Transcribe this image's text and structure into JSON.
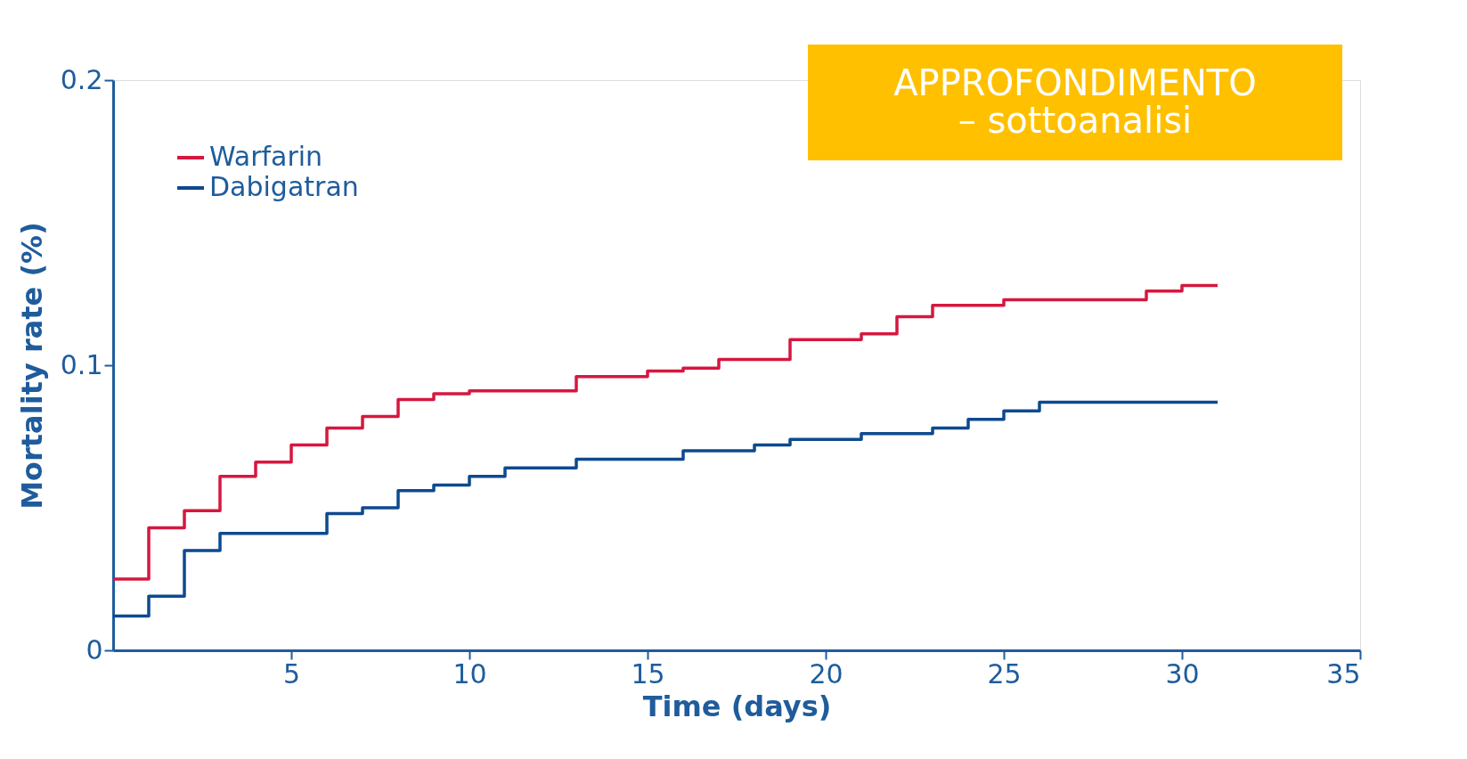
{
  "chart_data": {
    "type": "step",
    "xlabel": "Time (days)",
    "ylabel": "Mortality rate (%)",
    "xlim": [
      0,
      35
    ],
    "xticks": [
      5,
      10,
      15,
      20,
      25,
      30,
      35
    ],
    "ylim": [
      0,
      0.2
    ],
    "yticks": [
      0,
      0.1,
      0.2
    ],
    "grid": false,
    "legend": "top left",
    "line_style": "solid",
    "marker": "none",
    "annotations": [
      "APPROFONDIMENTO\n– sottoanalisi"
    ],
    "series": [
      {
        "name": "Warfarin",
        "color": "#d6173f",
        "x": [
          0,
          1,
          2,
          3,
          4,
          5,
          6,
          7,
          8,
          9,
          10,
          13,
          15,
          16,
          17,
          19,
          21,
          22,
          23,
          25,
          29,
          30,
          31
        ],
        "values": [
          0.025,
          0.043,
          0.049,
          0.061,
          0.066,
          0.072,
          0.078,
          0.082,
          0.088,
          0.09,
          0.091,
          0.096,
          0.098,
          0.099,
          0.102,
          0.109,
          0.111,
          0.117,
          0.121,
          0.123,
          0.126,
          0.128,
          0.128
        ]
      },
      {
        "name": "Dabigatran",
        "color": "#0d4a8f",
        "x": [
          0,
          1,
          2,
          3,
          6,
          7,
          8,
          9,
          10,
          11,
          13,
          16,
          18,
          19,
          21,
          23,
          24,
          25,
          26,
          31
        ],
        "values": [
          0.012,
          0.019,
          0.035,
          0.041,
          0.048,
          0.05,
          0.056,
          0.058,
          0.061,
          0.064,
          0.067,
          0.07,
          0.072,
          0.074,
          0.076,
          0.078,
          0.081,
          0.084,
          0.087,
          0.087
        ]
      }
    ]
  }
}
